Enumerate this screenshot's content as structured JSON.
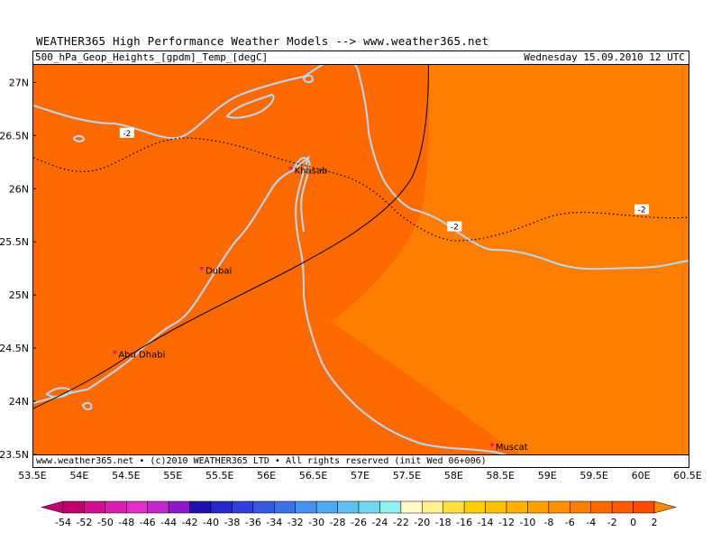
{
  "header": {
    "title": "WEATHER365 High Performance Weather Models --> www.weather365.net"
  },
  "info_bar": {
    "product": "500_hPa_Geop_Heights_[gpdm]_Temp_[degC]",
    "date": "Wednesday  15.09.2010  12  UTC"
  },
  "footer": {
    "text": "www.weather365.net  • (c)2010 WEATHER365 LTD • All rights reserved (init Wed 06+006)"
  },
  "map": {
    "fill_colors": {
      "warm": "#ff7d00",
      "mid": "#ff6a00",
      "coast": "#b8d8f0"
    },
    "lat_labels": [
      "27N",
      "26.5N",
      "26N",
      "25.5N",
      "25N",
      "24.5N",
      "24N",
      "23.5N"
    ],
    "lat_values": [
      27,
      26.5,
      26,
      25.5,
      25,
      24.5,
      24,
      23.5
    ],
    "lon_labels": [
      "53.5E",
      "54E",
      "54.5E",
      "55E",
      "55.5E",
      "56E",
      "56.5E",
      "57E",
      "57.5E",
      "58E",
      "58.5E",
      "59E",
      "59.5E",
      "60E",
      "60.5E"
    ],
    "lon_values": [
      53.5,
      54,
      54.5,
      55,
      55.5,
      56,
      56.5,
      57,
      57.5,
      58,
      58.5,
      59,
      59.5,
      60,
      60.5
    ],
    "cities": [
      {
        "name": "Khasab",
        "lon": 56.25,
        "lat": 26.2
      },
      {
        "name": "Dubai",
        "lon": 55.3,
        "lat": 25.26
      },
      {
        "name": "Abu Dhabi",
        "lon": 54.37,
        "lat": 24.47
      },
      {
        "name": "Muscat",
        "lon": 58.4,
        "lat": 23.6
      }
    ],
    "contour_labels": [
      {
        "text": "-2",
        "lon": 54.5,
        "lat": 26.53
      },
      {
        "text": "-2",
        "lon": 58.0,
        "lat": 25.65
      },
      {
        "text": "-2",
        "lon": 60.0,
        "lat": 25.81
      }
    ]
  },
  "colorbar": {
    "labels": [
      "-54",
      "-52",
      "-50",
      "-48",
      "-46",
      "-44",
      "-42",
      "-40",
      "-38",
      "-36",
      "-34",
      "-32",
      "-30",
      "-28",
      "-26",
      "-24",
      "-22",
      "-20",
      "-18",
      "-16",
      "-14",
      "-12",
      "-10",
      "-8",
      "-6",
      "-4",
      "-2",
      "0",
      "2"
    ],
    "colors": [
      "#c0006e",
      "#cc1090",
      "#d820b0",
      "#e030c8",
      "#c028c8",
      "#8c1ac8",
      "#2010b0",
      "#2828c8",
      "#3040d8",
      "#3858e0",
      "#4070e8",
      "#4890f0",
      "#50a8f0",
      "#60c0f0",
      "#70d8f0",
      "#90f0f0",
      "#fff8c8",
      "#fff090",
      "#ffe040",
      "#ffd000",
      "#ffc000",
      "#ffb000",
      "#ffa000",
      "#ff9000",
      "#ff7d00",
      "#ff6a00",
      "#ff5a00",
      "#ff4a00"
    ]
  }
}
